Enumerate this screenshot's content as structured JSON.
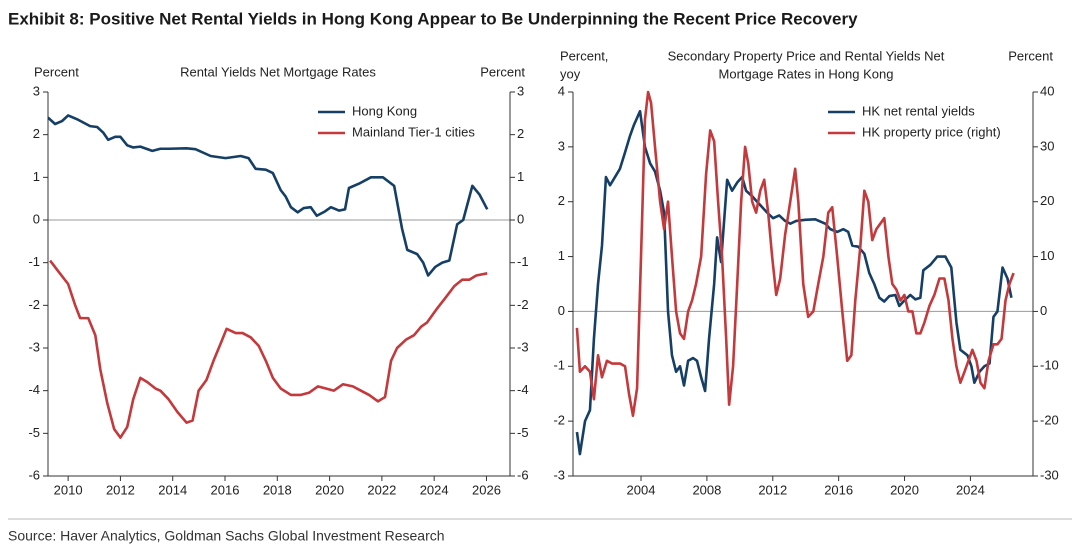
{
  "title": "Exhibit 8: Positive Net Rental Yields in Hong Kong Appear to Be Underpinning the Recent Price Recovery",
  "source": "Source: Haver Analytics, Goldman Sachs Global Investment Research",
  "chart_data": [
    {
      "type": "line",
      "title": [
        "Rental Yields Net Mortgage Rates"
      ],
      "y_label": [
        "Percent"
      ],
      "y2_label": "Percent",
      "xlim": [
        2009.23,
        2026.9
      ],
      "xticks": [
        2010,
        2012,
        2014,
        2016,
        2018,
        2020,
        2022,
        2024,
        2026
      ],
      "ylim": [
        -6,
        3
      ],
      "yticks": [
        -6,
        -5,
        -4,
        -3,
        -2,
        -1,
        0,
        1,
        2,
        3
      ],
      "y2lim": [
        -6,
        3
      ],
      "y2ticks": [
        -6,
        -5,
        -4,
        -3,
        -2,
        -1,
        0,
        1,
        2,
        3
      ],
      "legend": "upper right",
      "series": [
        {
          "name": "Hong Kong",
          "color": "#163f66",
          "x": [
            2009.23,
            2009.5,
            2009.77,
            2010,
            2010.38,
            2010.84,
            2011.11,
            2011.34,
            2011.53,
            2011.8,
            2012,
            2012.26,
            2012.49,
            2012.76,
            2013.22,
            2013.53,
            2013.84,
            2014.53,
            2014.87,
            2015.45,
            2016.02,
            2016.6,
            2016.9,
            2017.17,
            2017.56,
            2017.83,
            2018.13,
            2018.32,
            2018.52,
            2018.78,
            2019.01,
            2019.28,
            2019.51,
            2019.82,
            2020.05,
            2020.36,
            2020.59,
            2020.74,
            2021.12,
            2021.58,
            2022.04,
            2022.47,
            2022.77,
            2022.97,
            2023.35,
            2023.58,
            2023.77,
            2024.04,
            2024.31,
            2024.58,
            2024.88,
            2025.11,
            2025.46,
            2025.73,
            2026.03
          ],
          "values": [
            2.4,
            2.25,
            2.32,
            2.45,
            2.35,
            2.2,
            2.18,
            2.05,
            1.88,
            1.95,
            1.95,
            1.75,
            1.7,
            1.72,
            1.62,
            1.67,
            1.67,
            1.68,
            1.66,
            1.5,
            1.45,
            1.5,
            1.45,
            1.2,
            1.18,
            1.1,
            0.7,
            0.55,
            0.3,
            0.18,
            0.28,
            0.3,
            0.1,
            0.2,
            0.3,
            0.22,
            0.25,
            0.75,
            0.85,
            1.0,
            1.0,
            0.8,
            -0.2,
            -0.7,
            -0.8,
            -1.0,
            -1.3,
            -1.1,
            -1.0,
            -0.95,
            -0.1,
            0.0,
            0.8,
            0.6,
            0.25
          ]
        },
        {
          "name": "Mainland Tier-1 cities",
          "color": "#c4393c",
          "x": [
            2009.31,
            2009.62,
            2010,
            2010.27,
            2010.46,
            2010.77,
            2011.04,
            2011.23,
            2011.5,
            2011.76,
            2012,
            2012.26,
            2012.49,
            2012.76,
            2013.03,
            2013.34,
            2013.53,
            2013.84,
            2014.18,
            2014.53,
            2014.76,
            2014.99,
            2015.29,
            2015.56,
            2015.83,
            2016.06,
            2016.41,
            2016.67,
            2016.98,
            2017.29,
            2017.56,
            2017.83,
            2018.13,
            2018.52,
            2018.9,
            2019.21,
            2019.55,
            2019.86,
            2020.16,
            2020.51,
            2020.89,
            2021.2,
            2021.51,
            2021.85,
            2022.12,
            2022.35,
            2022.58,
            2022.93,
            2023.23,
            2023.5,
            2023.73,
            2024.08,
            2024.46,
            2024.77,
            2025.07,
            2025.34,
            2025.61,
            2026.03
          ],
          "values": [
            -0.95,
            -1.2,
            -1.5,
            -2.0,
            -2.3,
            -2.3,
            -2.7,
            -3.5,
            -4.3,
            -4.9,
            -5.1,
            -4.85,
            -4.2,
            -3.7,
            -3.8,
            -3.95,
            -4.0,
            -4.2,
            -4.5,
            -4.75,
            -4.7,
            -4.0,
            -3.75,
            -3.3,
            -2.9,
            -2.55,
            -2.65,
            -2.65,
            -2.75,
            -2.95,
            -3.3,
            -3.7,
            -3.95,
            -4.1,
            -4.1,
            -4.05,
            -3.9,
            -3.95,
            -4.0,
            -3.85,
            -3.9,
            -4.0,
            -4.1,
            -4.25,
            -4.15,
            -3.3,
            -3.0,
            -2.8,
            -2.7,
            -2.5,
            -2.4,
            -2.1,
            -1.8,
            -1.55,
            -1.4,
            -1.4,
            -1.3,
            -1.25
          ]
        }
      ]
    },
    {
      "type": "line",
      "title": [
        "Secondary Property Price and Rental Yields Net",
        "Mortgage Rates in Hong Kong"
      ],
      "y_label": [
        "Percent,",
        "yoy"
      ],
      "y2_label": "Percent",
      "xlim": [
        1999.87,
        2027.8
      ],
      "xticks": [
        2004,
        2008,
        2012,
        2016,
        2020,
        2024
      ],
      "ylim": [
        -3,
        4
      ],
      "yticks": [
        -3,
        -2,
        -1,
        0,
        1,
        2,
        3,
        4
      ],
      "y2lim": [
        -30,
        40
      ],
      "y2ticks": [
        -30,
        -20,
        -10,
        0,
        10,
        20,
        30,
        40
      ],
      "legend": "upper right",
      "series": [
        {
          "name": "HK net rental yields",
          "color": "#163f66",
          "x": [
            2000.11,
            2000.29,
            2000.6,
            2000.9,
            2001.14,
            2001.39,
            2001.63,
            2001.87,
            2002.12,
            2002.42,
            2002.72,
            2003.03,
            2003.33,
            2003.57,
            2003.94,
            2004.24,
            2004.55,
            2004.85,
            2005.16,
            2005.4,
            2005.64,
            2005.88,
            2006.13,
            2006.37,
            2006.61,
            2006.86,
            2007.16,
            2007.4,
            2007.65,
            2007.89,
            2008.13,
            2008.44,
            2008.62,
            2008.86,
            2009.23,
            2009.53,
            2009.84,
            2010.14,
            2010.38,
            2010.75,
            2011.05,
            2011.36,
            2011.66,
            2012.02,
            2012.39,
            2012.75,
            2013.06,
            2013.42,
            2013.97,
            2014.58,
            2015.19,
            2015.49,
            2015.91,
            2016.28,
            2016.58,
            2016.83,
            2017.19,
            2017.56,
            2017.86,
            2018.16,
            2018.47,
            2018.77,
            2019.08,
            2019.44,
            2019.68,
            2019.99,
            2020.35,
            2020.66,
            2020.96,
            2021.14,
            2021.57,
            2021.99,
            2022.48,
            2022.84,
            2023.15,
            2023.39,
            2023.82,
            2024.06,
            2024.24,
            2024.55,
            2024.85,
            2025.16,
            2025.4,
            2025.64,
            2025.95,
            2026.25,
            2026.49
          ],
          "values": [
            -2.2,
            -2.6,
            -2.0,
            -1.8,
            -0.5,
            0.5,
            1.2,
            2.45,
            2.3,
            2.45,
            2.6,
            2.9,
            3.2,
            3.4,
            3.65,
            3.0,
            2.7,
            2.55,
            2.2,
            1.8,
            0.0,
            -0.8,
            -1.1,
            -1.0,
            -1.35,
            -0.9,
            -0.85,
            -0.9,
            -1.2,
            -1.45,
            -0.5,
            0.5,
            1.35,
            0.9,
            2.4,
            2.2,
            2.35,
            2.45,
            2.2,
            2.1,
            2.0,
            1.9,
            1.8,
            1.7,
            1.75,
            1.65,
            1.6,
            1.65,
            1.67,
            1.68,
            1.6,
            1.5,
            1.45,
            1.5,
            1.45,
            1.2,
            1.18,
            1.05,
            0.7,
            0.5,
            0.25,
            0.18,
            0.28,
            0.3,
            0.1,
            0.2,
            0.3,
            0.22,
            0.25,
            0.75,
            0.85,
            1.0,
            1.0,
            0.8,
            -0.2,
            -0.7,
            -0.8,
            -1.0,
            -1.3,
            -1.1,
            -1.0,
            -0.95,
            -0.1,
            0.0,
            0.8,
            0.6,
            0.25
          ]
        },
        {
          "name": "HK property price (right)",
          "color": "#c4393c",
          "axis": "y2",
          "x": [
            2000.11,
            2000.29,
            2000.6,
            2000.9,
            2001.14,
            2001.39,
            2001.63,
            2001.93,
            2002.24,
            2002.72,
            2003.03,
            2003.27,
            2003.51,
            2003.76,
            2004.0,
            2004.24,
            2004.43,
            2004.61,
            2004.85,
            2005.16,
            2005.4,
            2005.64,
            2005.88,
            2006.13,
            2006.37,
            2006.61,
            2006.86,
            2007.1,
            2007.34,
            2007.65,
            2007.95,
            2008.2,
            2008.44,
            2008.68,
            2008.92,
            2009.17,
            2009.35,
            2009.59,
            2009.84,
            2010.08,
            2010.32,
            2010.51,
            2010.75,
            2010.99,
            2011.24,
            2011.48,
            2011.72,
            2011.96,
            2012.21,
            2012.45,
            2012.75,
            2013.06,
            2013.36,
            2013.55,
            2013.85,
            2014.15,
            2014.46,
            2014.76,
            2015.07,
            2015.37,
            2015.61,
            2015.91,
            2016.22,
            2016.52,
            2016.77,
            2017.01,
            2017.32,
            2017.56,
            2017.8,
            2018.04,
            2018.29,
            2018.53,
            2018.77,
            2019.02,
            2019.26,
            2019.5,
            2019.75,
            2019.99,
            2020.23,
            2020.48,
            2020.72,
            2020.96,
            2021.21,
            2021.51,
            2021.81,
            2022.12,
            2022.42,
            2022.67,
            2022.91,
            2023.15,
            2023.39,
            2023.64,
            2023.88,
            2024.12,
            2024.37,
            2024.61,
            2024.85,
            2025.1,
            2025.4,
            2025.64,
            2025.89,
            2026.13,
            2026.37,
            2026.62
          ],
          "values": [
            -3,
            -11,
            -10,
            -11,
            -16,
            -8,
            -12,
            -9,
            -9.5,
            -9.5,
            -10,
            -15,
            -19,
            -14,
            10,
            35,
            40,
            38,
            30,
            20,
            15,
            20,
            10,
            0,
            -4,
            -5,
            0,
            2,
            5,
            10,
            25,
            33,
            31,
            20,
            10,
            -5,
            -17,
            -10,
            5,
            20,
            30,
            27,
            20,
            18,
            22,
            24,
            18,
            10,
            3,
            6,
            14,
            20,
            26,
            20,
            5,
            -1,
            0,
            5,
            10,
            18,
            19,
            10,
            0,
            -9,
            -8,
            2,
            12,
            22,
            20,
            13,
            15,
            16,
            17,
            10,
            5,
            4,
            2,
            3,
            0,
            0,
            -4,
            -4,
            -2,
            1,
            3,
            6,
            6,
            2,
            -5,
            -10,
            -13,
            -11,
            -9,
            -7,
            -9,
            -13,
            -14,
            -9,
            -6,
            -6,
            -5,
            2,
            5,
            7
          ]
        }
      ]
    }
  ]
}
